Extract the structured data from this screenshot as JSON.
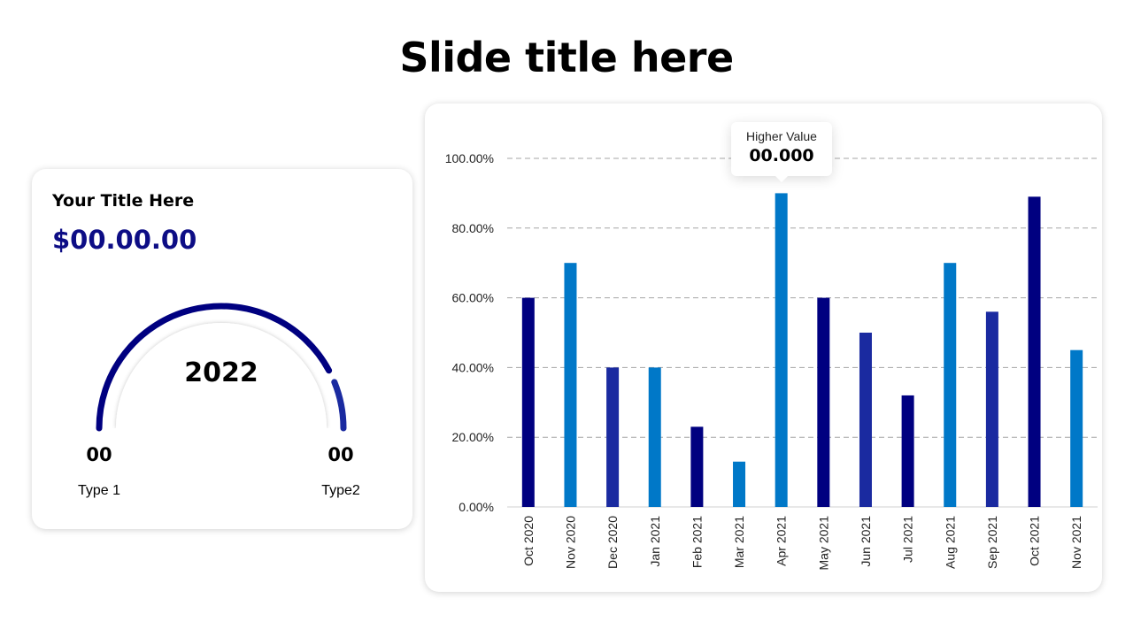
{
  "slide": {
    "title": "Slide title here"
  },
  "kpi": {
    "title": "Your Title Here",
    "value": "$00.00.00",
    "year": "2022",
    "left_number": "00",
    "right_number": "00",
    "left_label": "Type 1",
    "right_label": "Type2",
    "gauge_fill_fraction": 0.86
  },
  "tooltip": {
    "label": "Higher Value",
    "value": "00.000"
  },
  "colors": {
    "navy": "#000080",
    "royal": "#1a2aa0",
    "sky": "#0078c8",
    "value_text": "#0d0d85",
    "grid": "#a6a6a6"
  },
  "chart_data": {
    "type": "bar",
    "categories": [
      "Oct 2020",
      "Nov 2020",
      "Dec 2020",
      "Jan 2021",
      "Feb 2021",
      "Mar 2021",
      "Apr 2021",
      "May 2021",
      "Jun 2021",
      "Jul 2021",
      "Aug 2021",
      "Sep 2021",
      "Oct 2021",
      "Nov 2021"
    ],
    "values": [
      60,
      70,
      40,
      40,
      23,
      13,
      90,
      60,
      50,
      32,
      70,
      56,
      89,
      45
    ],
    "bar_colors": [
      "navy",
      "sky",
      "royal",
      "sky",
      "navy",
      "sky",
      "sky",
      "navy",
      "royal",
      "navy",
      "sky",
      "royal",
      "navy",
      "sky"
    ],
    "yticks": [
      "0.00%",
      "20.00%",
      "40.00%",
      "60.00%",
      "80.00%",
      "100.00%"
    ],
    "ylim": [
      0,
      100
    ],
    "grid": true,
    "title": "",
    "xlabel": "",
    "ylabel": ""
  }
}
